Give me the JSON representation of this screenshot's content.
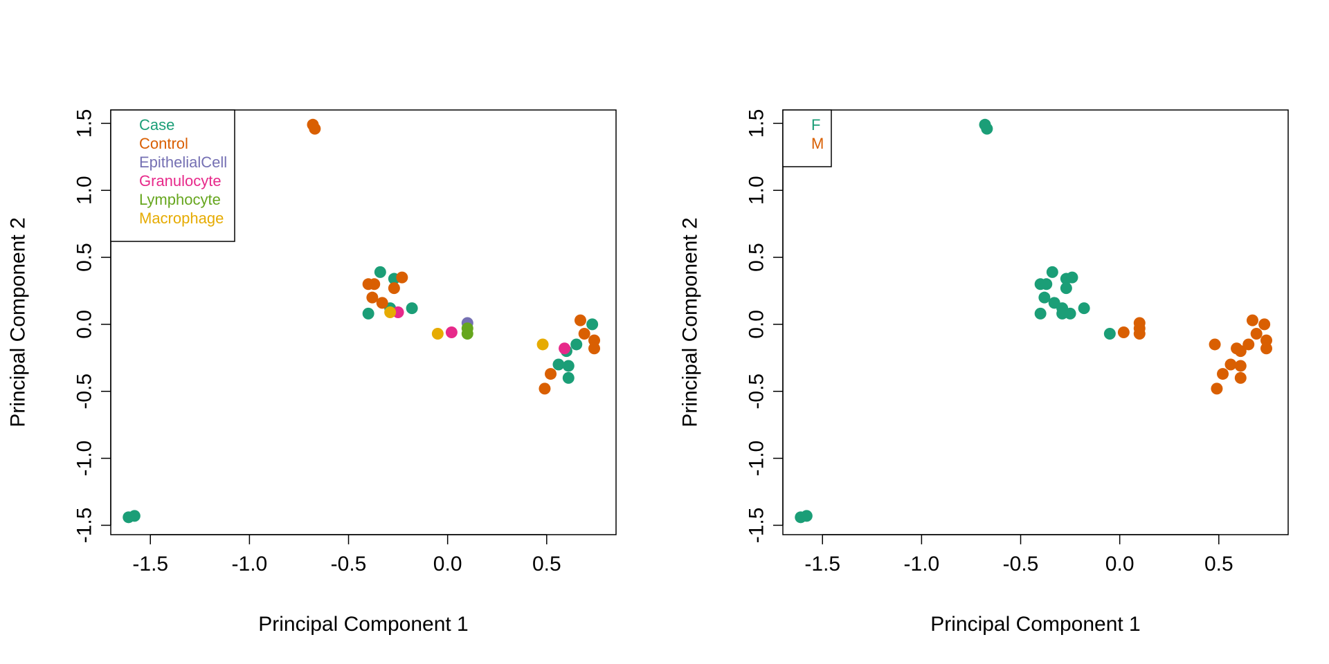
{
  "chart_data": [
    {
      "type": "scatter",
      "xlabel": "Principal Component 1",
      "ylabel": "Principal Component 2",
      "xlim": [
        -1.7,
        0.85
      ],
      "ylim": [
        -1.57,
        1.6
      ],
      "xticks": [
        -1.5,
        -1.0,
        -0.5,
        0.0,
        0.5
      ],
      "xtick_labels": [
        "-1.5",
        "-1.0",
        "-0.5",
        "0.0",
        "0.5"
      ],
      "yticks": [
        -1.5,
        -1.0,
        -0.5,
        0.0,
        0.5,
        1.0,
        1.5
      ],
      "ytick_labels": [
        "-1.5",
        "-1.0",
        "-0.5",
        "0.0",
        "0.5",
        "1.0",
        "1.5"
      ],
      "grid": false,
      "legend_position": "top-left",
      "series": [
        {
          "name": "Case",
          "color": "#1b9e77",
          "points": [
            [
              -1.61,
              -1.44
            ],
            [
              -1.58,
              -1.43
            ],
            [
              -0.34,
              0.39
            ],
            [
              -0.27,
              0.34
            ],
            [
              -0.4,
              0.08
            ],
            [
              -0.29,
              0.12
            ],
            [
              -0.18,
              0.12
            ],
            [
              0.6,
              -0.2
            ],
            [
              0.65,
              -0.15
            ],
            [
              0.56,
              -0.3
            ],
            [
              0.61,
              -0.31
            ],
            [
              0.61,
              -0.4
            ],
            [
              0.73,
              0.0
            ]
          ]
        },
        {
          "name": "Control",
          "color": "#d95f02",
          "points": [
            [
              -0.68,
              1.49
            ],
            [
              -0.67,
              1.46
            ],
            [
              -0.4,
              0.3
            ],
            [
              -0.37,
              0.3
            ],
            [
              -0.23,
              0.35
            ],
            [
              -0.38,
              0.2
            ],
            [
              -0.33,
              0.16
            ],
            [
              -0.27,
              0.27
            ],
            [
              0.67,
              0.03
            ],
            [
              0.69,
              -0.07
            ],
            [
              0.74,
              -0.12
            ],
            [
              0.74,
              -0.18
            ],
            [
              0.52,
              -0.37
            ],
            [
              0.49,
              -0.48
            ]
          ]
        },
        {
          "name": "EpithelialCell",
          "color": "#7570b3",
          "points": [
            [
              0.1,
              0.01
            ]
          ]
        },
        {
          "name": "Granulocyte",
          "color": "#e7298a",
          "points": [
            [
              -0.25,
              0.09
            ],
            [
              0.02,
              -0.06
            ],
            [
              0.59,
              -0.18
            ]
          ]
        },
        {
          "name": "Lymphocyte",
          "color": "#66a61e",
          "points": [
            [
              0.1,
              -0.03
            ],
            [
              0.1,
              -0.07
            ]
          ]
        },
        {
          "name": "Macrophage",
          "color": "#e6ab02",
          "points": [
            [
              -0.29,
              0.09
            ],
            [
              -0.05,
              -0.07
            ],
            [
              0.48,
              -0.15
            ]
          ]
        }
      ]
    },
    {
      "type": "scatter",
      "xlabel": "Principal Component 1",
      "ylabel": "Principal Component 2",
      "xlim": [
        -1.7,
        0.85
      ],
      "ylim": [
        -1.57,
        1.6
      ],
      "xticks": [
        -1.5,
        -1.0,
        -0.5,
        0.0,
        0.5
      ],
      "xtick_labels": [
        "-1.5",
        "-1.0",
        "-0.5",
        "0.0",
        "0.5"
      ],
      "yticks": [
        -1.5,
        -1.0,
        -0.5,
        0.0,
        0.5,
        1.0,
        1.5
      ],
      "ytick_labels": [
        "-1.5",
        "-1.0",
        "-0.5",
        "0.0",
        "0.5",
        "1.0",
        "1.5"
      ],
      "grid": false,
      "legend_position": "top-left",
      "series": [
        {
          "name": "F",
          "color": "#1b9e77",
          "points": [
            [
              -1.61,
              -1.44
            ],
            [
              -1.58,
              -1.43
            ],
            [
              -0.68,
              1.49
            ],
            [
              -0.67,
              1.46
            ],
            [
              -0.34,
              0.39
            ],
            [
              -0.4,
              0.3
            ],
            [
              -0.37,
              0.3
            ],
            [
              -0.27,
              0.34
            ],
            [
              -0.24,
              0.35
            ],
            [
              -0.27,
              0.27
            ],
            [
              -0.38,
              0.2
            ],
            [
              -0.33,
              0.16
            ],
            [
              -0.29,
              0.12
            ],
            [
              -0.4,
              0.08
            ],
            [
              -0.29,
              0.08
            ],
            [
              -0.25,
              0.08
            ],
            [
              -0.18,
              0.12
            ],
            [
              -0.05,
              -0.07
            ]
          ]
        },
        {
          "name": "M",
          "color": "#d95f02",
          "points": [
            [
              0.02,
              -0.06
            ],
            [
              0.1,
              0.01
            ],
            [
              0.1,
              -0.03
            ],
            [
              0.1,
              -0.07
            ],
            [
              0.67,
              0.03
            ],
            [
              0.69,
              -0.07
            ],
            [
              0.73,
              0.0
            ],
            [
              0.74,
              -0.12
            ],
            [
              0.74,
              -0.18
            ],
            [
              0.48,
              -0.15
            ],
            [
              0.59,
              -0.18
            ],
            [
              0.61,
              -0.2
            ],
            [
              0.65,
              -0.15
            ],
            [
              0.56,
              -0.3
            ],
            [
              0.61,
              -0.31
            ],
            [
              0.52,
              -0.37
            ],
            [
              0.61,
              -0.4
            ],
            [
              0.49,
              -0.48
            ]
          ]
        }
      ]
    }
  ]
}
